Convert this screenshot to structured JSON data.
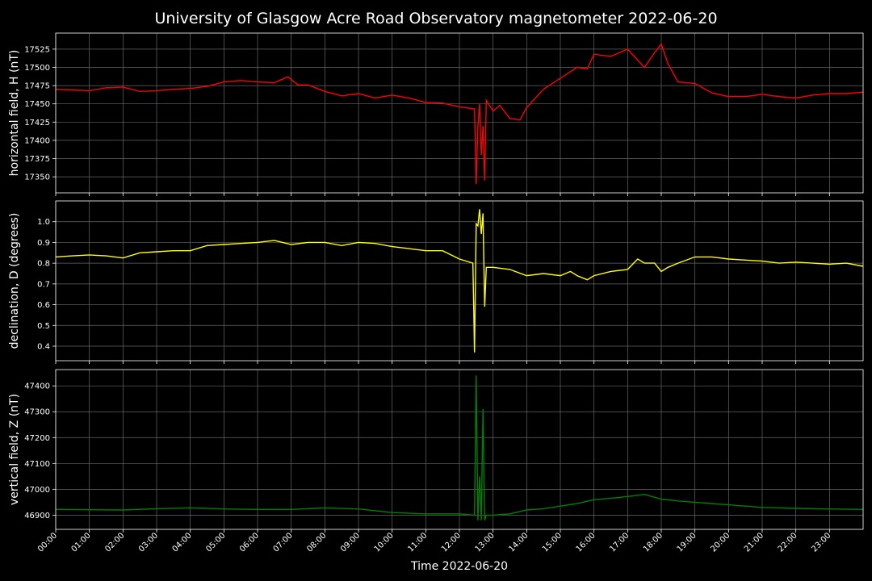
{
  "colors": {
    "background": "#000000",
    "grid": "#666666",
    "text": "#ffffff"
  },
  "chart_data": {
    "type": "line",
    "title": "University of Glasgow Acre Road Observatory magnetometer 2022-06-20",
    "xlabel": "Time 2022-06-20",
    "x_range": [
      0,
      24
    ],
    "x_tick_labels": [
      "00:00",
      "01:00",
      "02:00",
      "03:00",
      "04:00",
      "05:00",
      "06:00",
      "07:00",
      "08:00",
      "09:00",
      "10:00",
      "11:00",
      "12:00",
      "13:00",
      "14:00",
      "15:00",
      "16:00",
      "17:00",
      "18:00",
      "19:00",
      "20:00",
      "21:00",
      "22:00",
      "23:00"
    ],
    "grid": true,
    "panels": [
      {
        "ylabel": "horizontal field, H (nT)",
        "color": "#ff0000",
        "ylim": [
          17328,
          17547
        ],
        "yticks": [
          17350,
          17375,
          17400,
          17425,
          17450,
          17475,
          17500,
          17525
        ],
        "series": {
          "x": [
            0,
            0.5,
            1,
            1.5,
            2,
            2.5,
            3,
            3.5,
            4,
            4.5,
            5,
            5.5,
            6,
            6.5,
            6.9,
            7.2,
            7.5,
            8,
            8.5,
            9,
            9.5,
            10,
            10.5,
            11,
            11.5,
            12,
            12.45,
            12.5,
            12.55,
            12.6,
            12.65,
            12.7,
            12.75,
            12.8,
            13,
            13.2,
            13.5,
            13.8,
            14,
            14.5,
            15,
            15.5,
            15.8,
            16,
            16.5,
            17,
            17.3,
            17.5,
            17.8,
            18,
            18.2,
            18.5,
            19,
            19.5,
            20,
            20.5,
            21,
            21.5,
            22,
            22.5,
            23,
            23.5,
            24
          ],
          "y": [
            17470,
            17469,
            17468,
            17472,
            17473,
            17467,
            17468,
            17470,
            17471,
            17474,
            17480,
            17482,
            17480,
            17479,
            17487,
            17476,
            17476,
            17467,
            17461,
            17464,
            17458,
            17462,
            17458,
            17452,
            17451,
            17446,
            17443,
            17340,
            17420,
            17450,
            17380,
            17420,
            17345,
            17455,
            17440,
            17448,
            17430,
            17428,
            17445,
            17470,
            17485,
            17500,
            17498,
            17518,
            17515,
            17525,
            17510,
            17500,
            17520,
            17532,
            17505,
            17480,
            17478,
            17465,
            17460,
            17460,
            17463,
            17460,
            17458,
            17462,
            17464,
            17464,
            17466
          ]
        }
      },
      {
        "ylabel": "declination, D (degrees)",
        "color": "#ffff00",
        "ylim": [
          0.33,
          1.1
        ],
        "yticks": [
          0.4,
          0.5,
          0.6,
          0.7,
          0.8,
          0.9,
          1.0
        ],
        "series": {
          "x": [
            0,
            0.5,
            1,
            1.5,
            2,
            2.5,
            3,
            3.5,
            4,
            4.5,
            5,
            5.5,
            6,
            6.5,
            7,
            7.5,
            8,
            8.5,
            9,
            9.5,
            10,
            10.5,
            11,
            11.5,
            12,
            12.4,
            12.45,
            12.5,
            12.55,
            12.6,
            12.65,
            12.7,
            12.75,
            12.8,
            13,
            13.5,
            14,
            14.5,
            15,
            15.3,
            15.5,
            15.8,
            16,
            16.5,
            17,
            17.3,
            17.5,
            17.8,
            18,
            18.2,
            18.5,
            19,
            19.5,
            20,
            20.5,
            21,
            21.5,
            22,
            22.5,
            23,
            23.5,
            24
          ],
          "y": [
            0.83,
            0.835,
            0.84,
            0.835,
            0.825,
            0.85,
            0.855,
            0.86,
            0.86,
            0.885,
            0.89,
            0.895,
            0.9,
            0.91,
            0.89,
            0.9,
            0.9,
            0.885,
            0.9,
            0.895,
            0.88,
            0.87,
            0.86,
            0.86,
            0.82,
            0.8,
            0.37,
            0.99,
            0.98,
            1.06,
            0.94,
            1.04,
            0.59,
            0.78,
            0.78,
            0.77,
            0.74,
            0.75,
            0.74,
            0.76,
            0.74,
            0.72,
            0.74,
            0.76,
            0.77,
            0.82,
            0.8,
            0.8,
            0.76,
            0.78,
            0.8,
            0.83,
            0.83,
            0.82,
            0.815,
            0.81,
            0.8,
            0.805,
            0.8,
            0.795,
            0.8,
            0.785
          ]
        }
      },
      {
        "ylabel": "vertical field, Z (nT)",
        "color": "#008000",
        "ylim": [
          46845,
          47463
        ],
        "yticks": [
          46900,
          47000,
          47100,
          47200,
          47300,
          47400
        ],
        "series": {
          "x": [
            0,
            1,
            2,
            3,
            4,
            5,
            6,
            7,
            8,
            9,
            10,
            11,
            12,
            12.45,
            12.5,
            12.55,
            12.6,
            12.65,
            12.7,
            12.75,
            12.8,
            13,
            13.5,
            14,
            14.5,
            15,
            15.5,
            16,
            16.5,
            17,
            17.5,
            18,
            18.5,
            19,
            19.5,
            20,
            20.5,
            21,
            21.5,
            22,
            23,
            24
          ],
          "y": [
            46922,
            46921,
            46920,
            46925,
            46928,
            46924,
            46922,
            46922,
            46928,
            46924,
            46910,
            46905,
            46905,
            46900,
            47440,
            46880,
            47050,
            46880,
            47310,
            46880,
            46900,
            46900,
            46905,
            46920,
            46925,
            46935,
            46945,
            46960,
            46965,
            46972,
            46980,
            46962,
            46955,
            46950,
            46945,
            46940,
            46935,
            46930,
            46928,
            46926,
            46924,
            46922
          ]
        }
      }
    ]
  }
}
